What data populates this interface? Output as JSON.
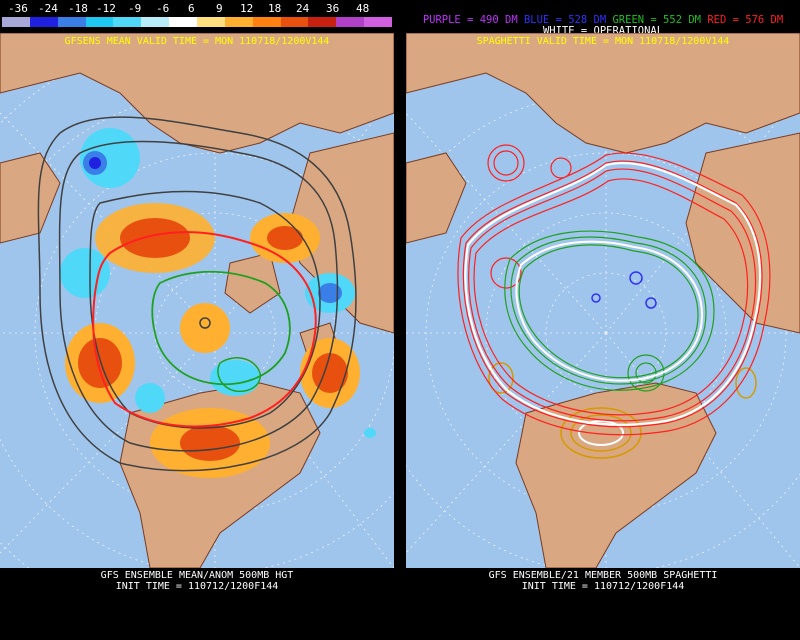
{
  "legend": {
    "labels": [
      "-36",
      "-24",
      "-18",
      "-12",
      "-9",
      "-6",
      "6",
      "9",
      "12",
      "18",
      "24",
      "36",
      "48"
    ],
    "colors": [
      "#a8a8d8",
      "#2020e0",
      "#3a7ee8",
      "#1ec8f0",
      "#50d8f8",
      "#b8ecf8",
      "#ffffff",
      "#ffe080",
      "#ffb030",
      "#ff8010",
      "#e85010",
      "#c82010",
      "#b040c8",
      "#d060e0"
    ]
  },
  "left_panel": {
    "title": "GFSENS MEAN VALID TIME = MON 110718/1200V144",
    "title_color": "#ffff00",
    "footer_line1": "GFS ENSEMBLE MEAN/ANOM 500MB HGT",
    "footer_line2": "INIT TIME = 110712/1200F144"
  },
  "right_panel": {
    "header_purple": "PURPLE = 490 DM",
    "header_blue": "BLUE = 528 DM",
    "header_green": "GREEN = 552 DM",
    "header_red": "RED = 576 DM",
    "operational": "WHITE = OPERATIONAL",
    "subtitle": "SPAGHETTI VALID TIME = MON 110718/1200V144",
    "footer_line1": "GFS ENSEMBLE/21 MEMBER 500MB SPAGHETTI",
    "footer_line2": "INIT TIME = 110712/1200F144"
  },
  "colors": {
    "ocean": "#9fc5ec",
    "land": "#d9a882",
    "coast": "#7a3a20",
    "purple": "#c030ff",
    "blue": "#3030ff",
    "green": "#20a020",
    "red": "#ff2020",
    "yellow": "#ffff00"
  }
}
